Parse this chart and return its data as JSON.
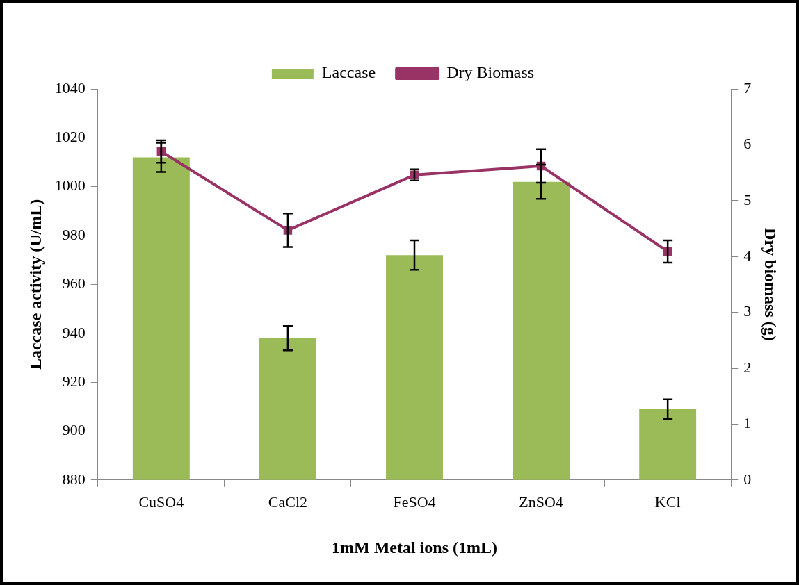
{
  "chart_data": {
    "type": "bar",
    "categories": [
      "CuSO4",
      "CaCl2",
      "FeSO4",
      "ZnSO4",
      "KCl"
    ],
    "series": [
      {
        "name": "Laccase",
        "color": "#9bbb59",
        "values": [
          1012,
          938,
          972,
          1002,
          909
        ],
        "errors": [
          6,
          5,
          6,
          7,
          4
        ]
      },
      {
        "name": "Dry Biomass",
        "type": "line",
        "axis": "y2",
        "color": "#993366",
        "values": [
          5.88,
          4.47,
          5.46,
          5.62,
          4.09
        ],
        "errors": [
          0.2,
          0.3,
          0.1,
          0.3,
          0.2
        ]
      }
    ],
    "xlabel": "1mM Metal ions (1mL)",
    "ylabel": "Laccase activity (U/mL)",
    "y2label": "Dry biomass (g)",
    "ylim": [
      880,
      1040
    ],
    "yticks": [
      880,
      900,
      920,
      940,
      960,
      980,
      1000,
      1020,
      1040
    ],
    "y2lim": [
      0,
      7
    ],
    "y2ticks": [
      0,
      1,
      2,
      3,
      4,
      5,
      6,
      7
    ],
    "legend": "top",
    "grid": false,
    "marker": "square",
    "line_style": "solid"
  }
}
